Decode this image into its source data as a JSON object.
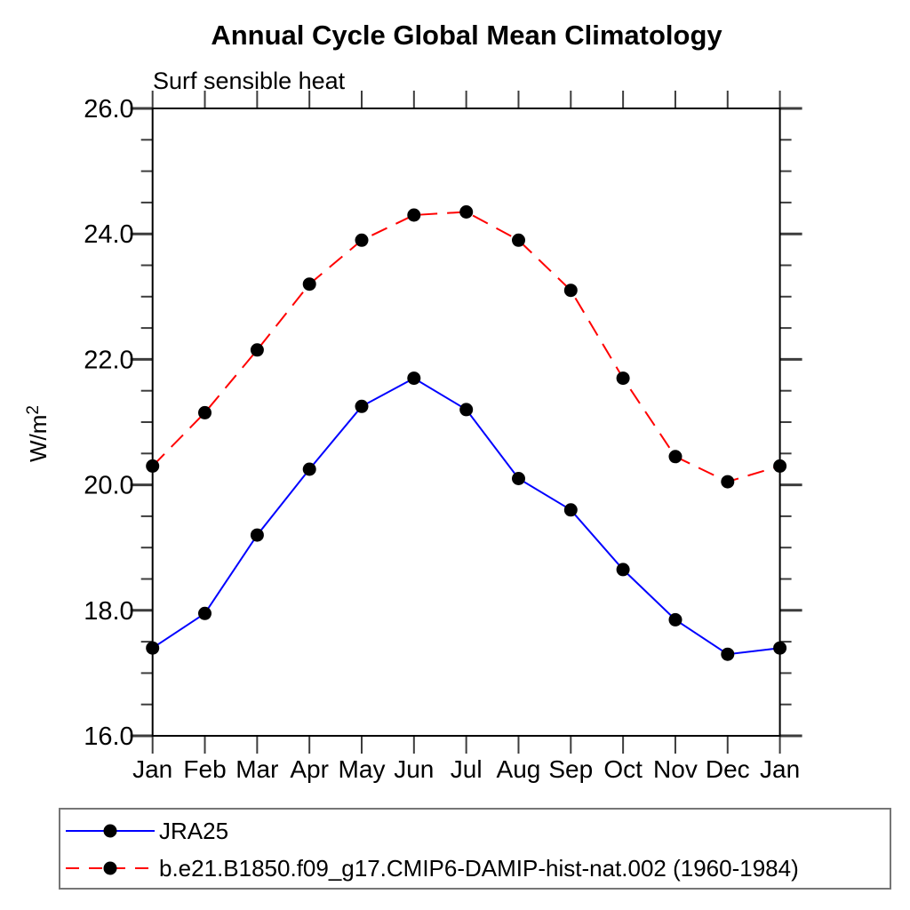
{
  "header": {
    "title": "Annual Cycle Global Mean Climatology",
    "subtitle": "Surf sensible heat"
  },
  "chart_data": {
    "type": "line",
    "title": "Annual Cycle Global Mean Climatology",
    "subtitle": "Surf sensible heat",
    "xlabel": "",
    "ylabel": "W/m^2",
    "ylabel_base": "W/m",
    "ylabel_sup": "2",
    "categories": [
      "Jan",
      "Feb",
      "Mar",
      "Apr",
      "May",
      "Jun",
      "Jul",
      "Aug",
      "Sep",
      "Oct",
      "Nov",
      "Dec",
      "Jan"
    ],
    "ylim": [
      16.0,
      26.0
    ],
    "ytick_values": [
      16.0,
      18.0,
      20.0,
      22.0,
      24.0,
      26.0
    ],
    "ytick_labels": [
      "16.0",
      "18.0",
      "20.0",
      "22.0",
      "24.0",
      "26.0"
    ],
    "yminor_step": 0.5,
    "grid": false,
    "legend_position": "bottom-left-box",
    "series": [
      {
        "name": "JRA25",
        "color": "#0000ff",
        "line_style": "solid",
        "marker": "filled-circle",
        "marker_color": "#000000",
        "values": [
          17.4,
          17.95,
          19.2,
          20.25,
          21.25,
          21.7,
          21.2,
          20.1,
          19.6,
          18.65,
          17.85,
          17.3,
          17.4
        ]
      },
      {
        "name": "b.e21.B1850.f09_g17.CMIP6-DAMIP-hist-nat.002 (1960-1984)",
        "color": "#ff0000",
        "line_style": "dashed",
        "marker": "filled-circle",
        "marker_color": "#000000",
        "values": [
          20.3,
          21.15,
          22.15,
          23.2,
          23.9,
          24.3,
          24.35,
          23.9,
          23.1,
          21.7,
          20.45,
          20.05,
          20.3
        ]
      }
    ]
  },
  "colors": {
    "axis_frame": "#000000",
    "tick": "#3d3d3d",
    "legend_border": "#767676"
  }
}
